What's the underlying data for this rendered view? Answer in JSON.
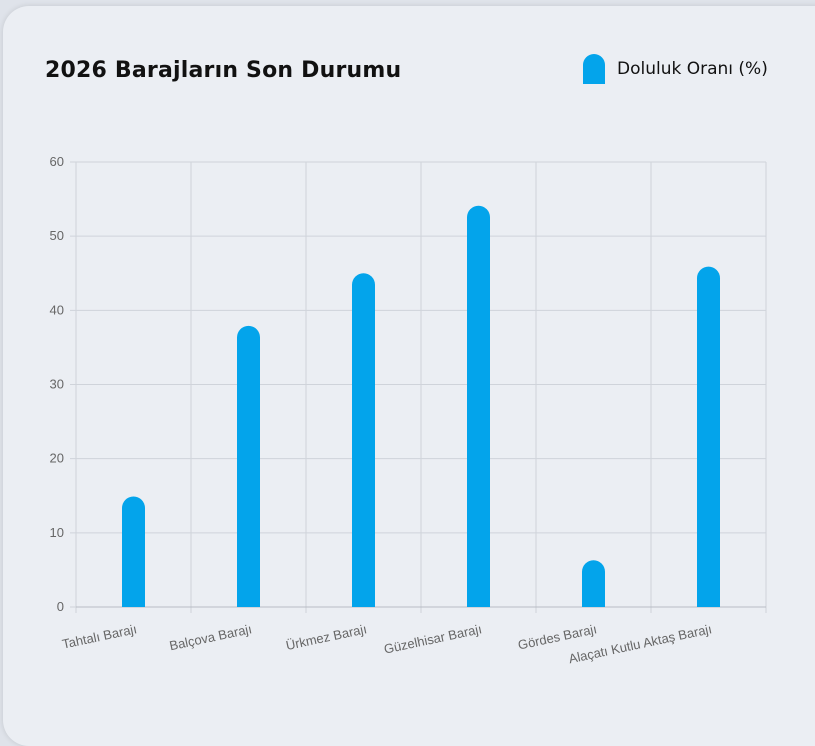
{
  "chart_data": {
    "type": "bar",
    "title": "2026 Barajların Son Durumu",
    "legend": [
      {
        "label": "Doluluk Oranı (%)",
        "color": "#03a4eb"
      }
    ],
    "legend_position": "top-right",
    "categories": [
      "Tahtalı Barajı",
      "Balçova Barajı",
      "Ürkmez Barajı",
      "Güzelhisar Barajı",
      "Gördes Barajı",
      "Alaçatı Kutlu Aktaş Barajı"
    ],
    "series": [
      {
        "name": "Doluluk Oranı (%)",
        "values": [
          14.9,
          37.9,
          45.0,
          54.1,
          6.3,
          45.9
        ]
      }
    ],
    "ylim": [
      0,
      60
    ],
    "yticks": [
      0,
      10,
      20,
      30,
      40,
      50,
      60
    ],
    "grid": true,
    "xlabel": "",
    "ylabel": ""
  }
}
